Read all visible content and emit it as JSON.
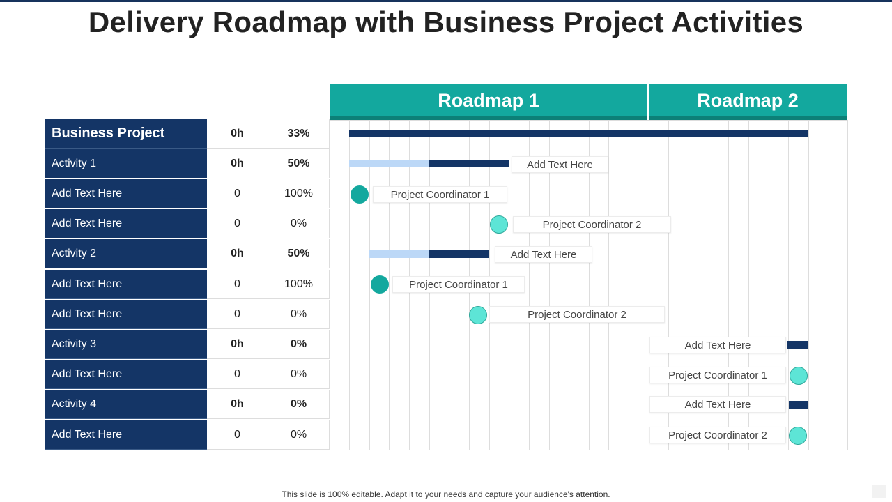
{
  "title": "Delivery Roadmap with Business Project Activities",
  "footer": "This slide is 100% editable. Adapt it to your needs and capture your audience's attention.",
  "colors": {
    "navy": "#143566",
    "teal": "#13a89e",
    "light_teal": "#5de5d6",
    "light_blue": "#bcd8f7"
  },
  "roadmaps": [
    "Roadmap 1",
    "Roadmap 2"
  ],
  "table": {
    "header": {
      "name": "Business Project",
      "hours": "0h",
      "percent": "33%"
    },
    "rows": [
      {
        "name": "Activity 1",
        "hours": "0h",
        "percent": "50%",
        "bold": true
      },
      {
        "name": "Add Text Here",
        "hours": "0",
        "percent": "100%",
        "bold": false
      },
      {
        "name": "Add Text Here",
        "hours": "0",
        "percent": "0%",
        "bold": false
      },
      {
        "name": "Activity 2",
        "hours": "0h",
        "percent": "50%",
        "bold": true
      },
      {
        "name": "Add Text Here",
        "hours": "0",
        "percent": "100%",
        "bold": false
      },
      {
        "name": "Add Text Here",
        "hours": "0",
        "percent": "0%",
        "bold": false
      },
      {
        "name": "Activity 3",
        "hours": "0h",
        "percent": "0%",
        "bold": true
      },
      {
        "name": "Add Text Here",
        "hours": "0",
        "percent": "0%",
        "bold": false
      },
      {
        "name": "Activity 4",
        "hours": "0h",
        "percent": "0%",
        "bold": true
      },
      {
        "name": "Add Text Here",
        "hours": "0",
        "percent": "0%",
        "bold": false
      }
    ]
  },
  "gantt_labels": [
    "Add Text Here",
    "Project Coordinator 1",
    "Project Coordinator 2",
    "Add Text Here",
    "Project Coordinator 1",
    "Project Coordinator 2",
    "Add Text Here",
    "Project Coordinator 1",
    "Add Text Here",
    "Project Coordinator 2"
  ]
}
